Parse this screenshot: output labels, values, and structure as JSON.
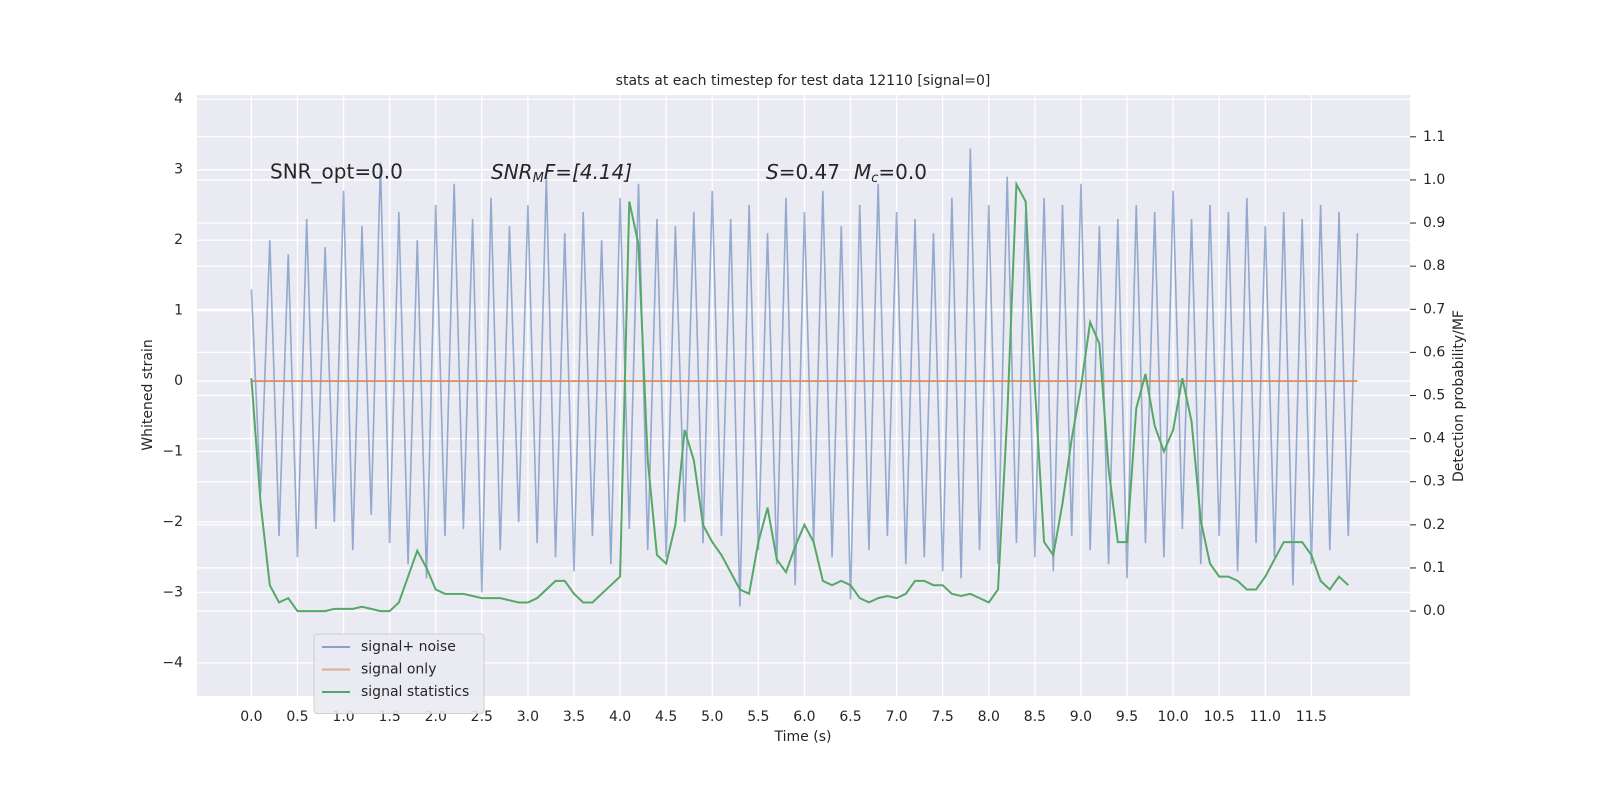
{
  "chart_data": {
    "type": "line",
    "title": "stats at each timestep for test data 12110 [signal=0]",
    "x_label": "Time (s)",
    "y_label": "Whitened strain",
    "y2_label": "Detection probability/MF",
    "annotations": {
      "snr_opt": "SNR_opt=0.0",
      "snr_mf": [
        "SNR",
        "M",
        "F=[4.14]"
      ],
      "stats": [
        "S",
        "=0.47",
        "M",
        "c",
        "=0.0"
      ]
    },
    "legend": "lower left",
    "grid": true,
    "xlim": [
      -0.59,
      12.57
    ],
    "ylim": [
      -4.47,
      4.06
    ],
    "y2lim": [
      -0.197,
      1.197
    ],
    "xticks": [
      {
        "value": 0,
        "label": "0.0"
      },
      0.5,
      {
        "value": 1,
        "label": "1.0"
      },
      1.5,
      {
        "value": 2,
        "label": "2.0"
      },
      2.5,
      {
        "value": 3,
        "label": "3.0"
      },
      3.5,
      {
        "value": 4,
        "label": "4.0"
      },
      4.5,
      {
        "value": 5,
        "label": "5.0"
      },
      5.5,
      {
        "value": 6,
        "label": "6.0"
      },
      6.5,
      {
        "value": 7,
        "label": "7.0"
      },
      7.5,
      {
        "value": 8,
        "label": "8.0"
      },
      8.5,
      {
        "value": 9,
        "label": "9.0"
      },
      9.5,
      {
        "value": 10,
        "label": "10.0"
      },
      10.5,
      {
        "value": 11,
        "label": "11.0"
      },
      11.5
    ],
    "yticks": [
      {
        "value": -4,
        "label": "−4"
      },
      {
        "value": -3,
        "label": "−3"
      },
      {
        "value": -2,
        "label": "−2"
      },
      {
        "value": -1,
        "label": "−1"
      },
      0,
      1,
      2,
      3,
      4
    ],
    "y2ticks": [
      {
        "value": 0,
        "label": "0.0"
      },
      0.1,
      0.2,
      0.3,
      0.4,
      0.5,
      0.6,
      0.7,
      0.8,
      0.9,
      {
        "value": 1,
        "label": "1.0"
      },
      1.1
    ],
    "series": [
      {
        "name": "signal+ noise",
        "color": "#4c72b0",
        "x": [
          0,
          0.1,
          0.2,
          0.3,
          0.4,
          0.5,
          0.6,
          0.7,
          0.8,
          0.9,
          1,
          1.1,
          1.2,
          1.3,
          1.4,
          1.5,
          1.6,
          1.7,
          1.8,
          1.9,
          2,
          2.1,
          2.2,
          2.3,
          2.4,
          2.5,
          2.6,
          2.7,
          2.8,
          2.9,
          3,
          3.1,
          3.2,
          3.3,
          3.4,
          3.5,
          3.6,
          3.7,
          3.8,
          3.9,
          4,
          4.1,
          4.2,
          4.3,
          4.4,
          4.5,
          4.6,
          4.7,
          4.8,
          4.9,
          5,
          5.1,
          5.2,
          5.3,
          5.4,
          5.5,
          5.6,
          5.7,
          5.8,
          5.9,
          6,
          6.1,
          6.2,
          6.3,
          6.4,
          6.5,
          6.6,
          6.7,
          6.8,
          6.9,
          7,
          7.1,
          7.2,
          7.3,
          7.4,
          7.5,
          7.6,
          7.7,
          7.8,
          7.9,
          8,
          8.1,
          8.2,
          8.3,
          8.4,
          8.5,
          8.6,
          8.7,
          8.8,
          8.9,
          9,
          9.1,
          9.2,
          9.3,
          9.4,
          9.5,
          9.6,
          9.7,
          9.8,
          9.9,
          10,
          10.1,
          10.2,
          10.3,
          10.4,
          10.5,
          10.6,
          10.7,
          10.8,
          10.9,
          11,
          11.1,
          11.2,
          11.3,
          11.4,
          11.5,
          11.6,
          11.7,
          11.8,
          11.9,
          12
        ],
        "values": [
          1.3,
          -1.6,
          2.0,
          -2.2,
          1.8,
          -2.5,
          2.3,
          -2.1,
          1.9,
          -2.0,
          2.7,
          -2.4,
          2.2,
          -1.9,
          3.1,
          -2.3,
          2.4,
          -2.6,
          2.0,
          -2.8,
          2.5,
          -2.2,
          2.8,
          -2.1,
          2.3,
          -3.0,
          2.6,
          -2.4,
          2.2,
          -2.0,
          2.5,
          -2.3,
          2.9,
          -2.5,
          2.1,
          -2.7,
          2.4,
          -2.2,
          2.0,
          -2.6,
          2.6,
          -2.1,
          2.8,
          -2.4,
          2.3,
          -2.5,
          2.2,
          -2.0,
          2.4,
          -2.3,
          2.7,
          -2.2,
          2.3,
          -3.2,
          2.5,
          -2.4,
          2.1,
          -2.6,
          2.6,
          -2.9,
          2.4,
          -2.3,
          2.7,
          -2.5,
          2.2,
          -3.1,
          2.5,
          -2.4,
          2.8,
          -2.2,
          2.4,
          -2.6,
          2.3,
          -2.5,
          2.1,
          -2.7,
          2.6,
          -2.8,
          3.3,
          -2.4,
          2.5,
          -2.6,
          2.9,
          -2.3,
          2.4,
          -2.5,
          2.6,
          -2.7,
          2.5,
          -2.2,
          2.8,
          -2.4,
          2.2,
          -2.6,
          2.3,
          -2.8,
          2.5,
          -2.3,
          2.4,
          -2.5,
          2.7,
          -2.1,
          2.3,
          -2.6,
          2.5,
          -2.2,
          2.4,
          -2.7,
          2.6,
          -2.3,
          2.2,
          -2.5,
          2.4,
          -2.9,
          2.3,
          -2.6,
          2.5,
          -2.4,
          2.4,
          -2.2,
          2.1
        ]
      },
      {
        "name": "signal only",
        "color": "#dd8452",
        "x": [
          0,
          12
        ],
        "values": [
          0,
          0
        ]
      },
      {
        "name": "signal statistics",
        "color": "#55a868",
        "axis": "y2",
        "x": [
          0,
          0.1,
          0.2,
          0.3,
          0.4,
          0.5,
          0.6,
          0.7,
          0.8,
          0.9,
          1,
          1.1,
          1.2,
          1.3,
          1.4,
          1.5,
          1.6,
          1.7,
          1.8,
          1.9,
          2,
          2.1,
          2.2,
          2.3,
          2.4,
          2.5,
          2.6,
          2.7,
          2.8,
          2.9,
          3,
          3.1,
          3.2,
          3.3,
          3.4,
          3.5,
          3.6,
          3.7,
          3.8,
          3.9,
          4,
          4.1,
          4.2,
          4.3,
          4.4,
          4.5,
          4.6,
          4.7,
          4.8,
          4.9,
          5,
          5.1,
          5.2,
          5.3,
          5.4,
          5.5,
          5.6,
          5.7,
          5.8,
          5.9,
          6,
          6.1,
          6.2,
          6.3,
          6.4,
          6.5,
          6.6,
          6.7,
          6.8,
          6.9,
          7,
          7.1,
          7.2,
          7.3,
          7.4,
          7.5,
          7.6,
          7.7,
          7.8,
          7.9,
          8,
          8.1,
          8.2,
          8.3,
          8.4,
          8.5,
          8.6,
          8.7,
          8.8,
          8.9,
          9,
          9.1,
          9.2,
          9.3,
          9.4,
          9.5,
          9.6,
          9.7,
          9.8,
          9.9,
          10,
          10.1,
          10.2,
          10.3,
          10.4,
          10.5,
          10.6,
          10.7,
          10.8,
          10.9,
          11,
          11.1,
          11.2,
          11.3,
          11.4,
          11.5,
          11.6,
          11.7,
          11.8,
          11.9
        ],
        "values": [
          0.54,
          0.25,
          0.06,
          0.02,
          0.03,
          0,
          0,
          0,
          0,
          0.005,
          0.005,
          0.005,
          0.01,
          0.005,
          0,
          0,
          0.02,
          0.08,
          0.14,
          0.1,
          0.05,
          0.04,
          0.04,
          0.04,
          0.035,
          0.03,
          0.03,
          0.03,
          0.025,
          0.02,
          0.02,
          0.03,
          0.05,
          0.07,
          0.07,
          0.04,
          0.02,
          0.02,
          0.04,
          0.06,
          0.08,
          0.95,
          0.85,
          0.35,
          0.13,
          0.11,
          0.2,
          0.42,
          0.35,
          0.2,
          0.16,
          0.13,
          0.09,
          0.05,
          0.04,
          0.16,
          0.24,
          0.12,
          0.09,
          0.15,
          0.2,
          0.16,
          0.07,
          0.06,
          0.07,
          0.06,
          0.03,
          0.02,
          0.03,
          0.035,
          0.03,
          0.04,
          0.07,
          0.07,
          0.06,
          0.06,
          0.04,
          0.035,
          0.04,
          0.03,
          0.02,
          0.05,
          0.45,
          0.99,
          0.95,
          0.52,
          0.16,
          0.13,
          0.25,
          0.4,
          0.52,
          0.67,
          0.62,
          0.33,
          0.16,
          0.16,
          0.47,
          0.55,
          0.43,
          0.37,
          0.42,
          0.54,
          0.44,
          0.21,
          0.11,
          0.08,
          0.08,
          0.07,
          0.05,
          0.05,
          0.08,
          0.12,
          0.16,
          0.16,
          0.16,
          0.13,
          0.07,
          0.05,
          0.08,
          0.06
        ]
      }
    ]
  }
}
